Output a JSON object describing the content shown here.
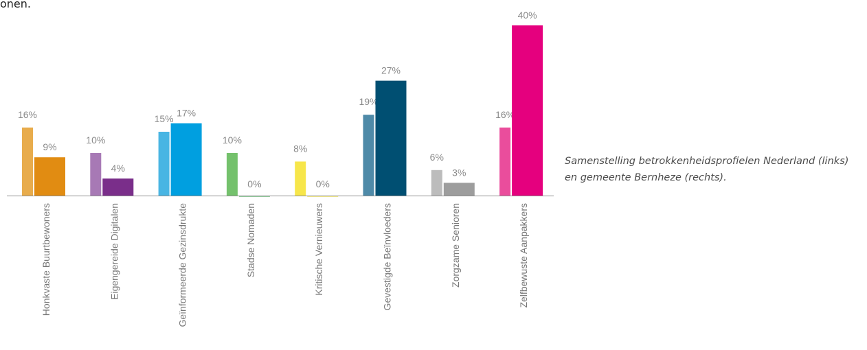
{
  "top_fragment": "onen.",
  "caption": {
    "line1": "Samenstelling betrokkenheidsprofielen Nederland (links)",
    "line2": "en gemeente Bernheze (rechts)."
  },
  "chart_data": {
    "type": "bar",
    "categories": [
      "Honkvaste Buurtbewoners",
      "Eigengereide Digitalen",
      "Geïnformeerde Gezinsdrukte",
      "Stadse Nomaden",
      "Kritische Vernieuwers",
      "Gevestigde Beïnvloeders",
      "Zorgzame Senioren",
      "Zelfbewuste Aanpakkers"
    ],
    "series": [
      {
        "values": [
          16,
          10,
          15,
          10,
          8,
          19,
          6,
          16
        ],
        "labels": [
          "16%",
          "10%",
          "15%",
          "10%",
          "8%",
          "19%",
          "6%",
          "16%"
        ]
      },
      {
        "values": [
          9,
          4,
          17,
          0,
          0,
          27,
          3,
          40
        ],
        "labels": [
          "9%",
          "4%",
          "17%",
          "0%",
          "0%",
          "27%",
          "3%",
          "40%"
        ]
      }
    ],
    "colors": {
      "left": [
        "#e8ac4c",
        "#a779b5",
        "#48b5e3",
        "#74c16c",
        "#f7e64a",
        "#4e8aa8",
        "#bcbcbc",
        "#ea4d9c"
      ],
      "right": [
        "#e18c12",
        "#7a2e8a",
        "#009fe0",
        "#2b9a3c",
        "#e9d51a",
        "#004f72",
        "#9d9d9d",
        "#e5007e"
      ]
    },
    "ylim": [
      0,
      40
    ],
    "grid": false,
    "legend": "none"
  }
}
